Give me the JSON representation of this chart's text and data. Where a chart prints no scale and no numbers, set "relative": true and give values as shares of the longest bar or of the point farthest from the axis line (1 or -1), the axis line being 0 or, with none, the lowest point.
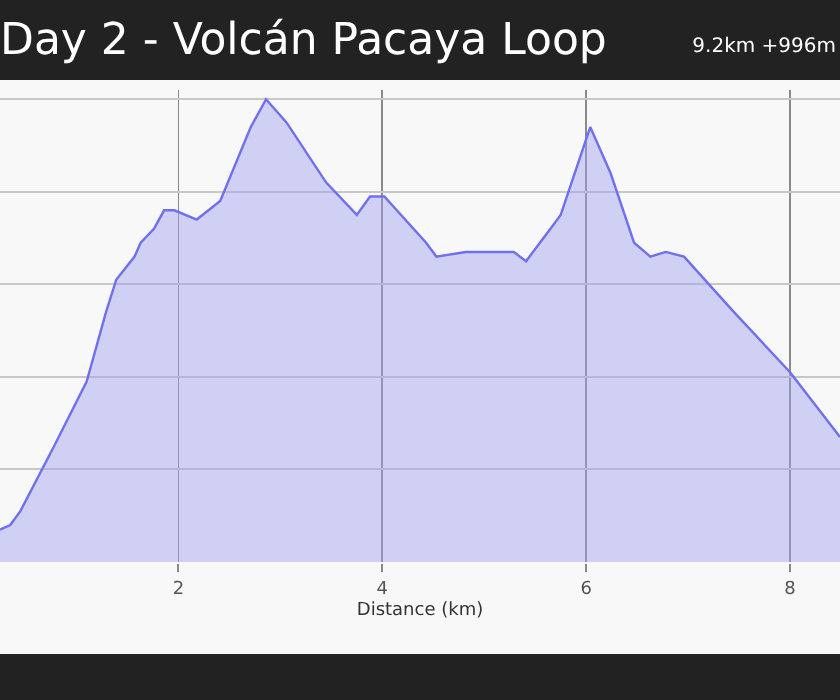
{
  "chart_data": {
    "type": "area",
    "title": "Day 2 - Volcán Pacaya Loop",
    "subtitle": "9.2km +996m",
    "xlabel": "Distance (km)",
    "relative": true,
    "grid": true,
    "marker": "none",
    "line_style": "solid",
    "x": [
      0.25,
      0.35,
      0.45,
      0.78,
      1.1,
      1.29,
      1.39,
      1.57,
      1.63,
      1.76,
      1.86,
      1.96,
      2.18,
      2.41,
      2.71,
      2.86,
      3.06,
      3.45,
      3.75,
      3.88,
      4.02,
      4.43,
      4.53,
      4.82,
      5.29,
      5.41,
      5.65,
      5.75,
      6.04,
      6.24,
      6.47,
      6.63,
      6.78,
      6.96,
      7.45,
      8.0,
      8.49
    ],
    "series": [
      {
        "color": "#6f6ff0",
        "values": [
          0.07,
          0.08,
          0.11,
          0.25,
          0.39,
          0.54,
          0.61,
          0.66,
          0.69,
          0.72,
          0.76,
          0.76,
          0.74,
          0.78,
          0.94,
          1.0,
          0.95,
          0.82,
          0.75,
          0.79,
          0.79,
          0.69,
          0.66,
          0.67,
          0.67,
          0.65,
          0.72,
          0.75,
          0.94,
          0.84,
          0.69,
          0.66,
          0.67,
          0.66,
          0.54,
          0.41,
          0.27
        ]
      }
    ],
    "xlim": [
      0.25,
      8.49
    ],
    "xticks": [
      2,
      4,
      6,
      8
    ]
  }
}
